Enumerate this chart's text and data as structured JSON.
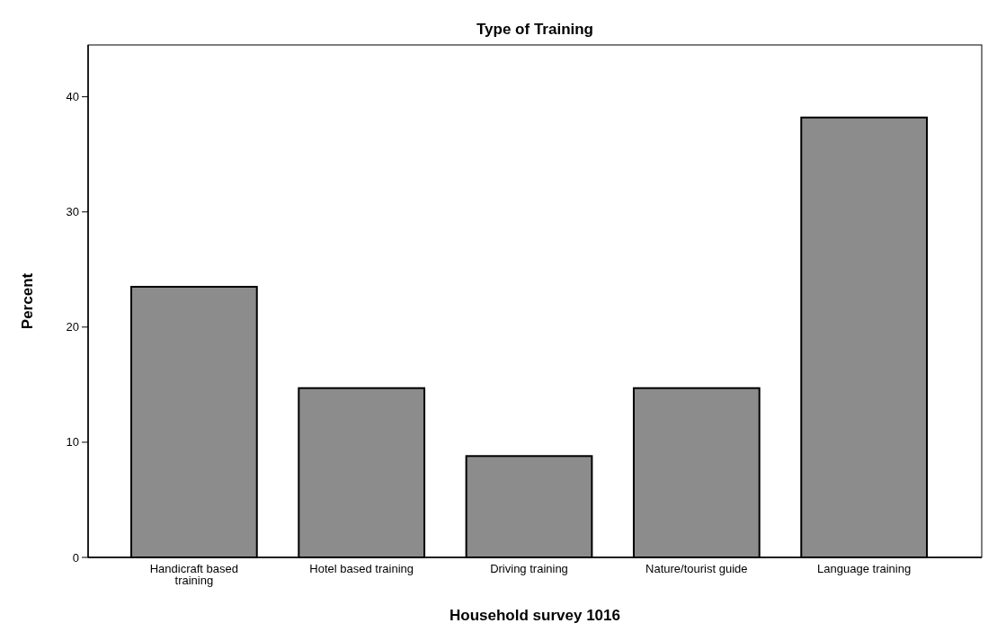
{
  "chart_data": {
    "type": "bar",
    "title": "Type of Training",
    "xlabel": "Household survey 1016",
    "ylabel": "Percent",
    "categories": [
      "Handicraft based training",
      "Hotel based training",
      "Driving training",
      "Nature/tourist guide",
      "Language training"
    ],
    "values": [
      23.5,
      14.7,
      8.8,
      14.7,
      38.2
    ],
    "color": "#8c8c8c",
    "ylim": [
      0,
      44.5
    ],
    "yticks": [
      0,
      10,
      20,
      30,
      40
    ]
  }
}
